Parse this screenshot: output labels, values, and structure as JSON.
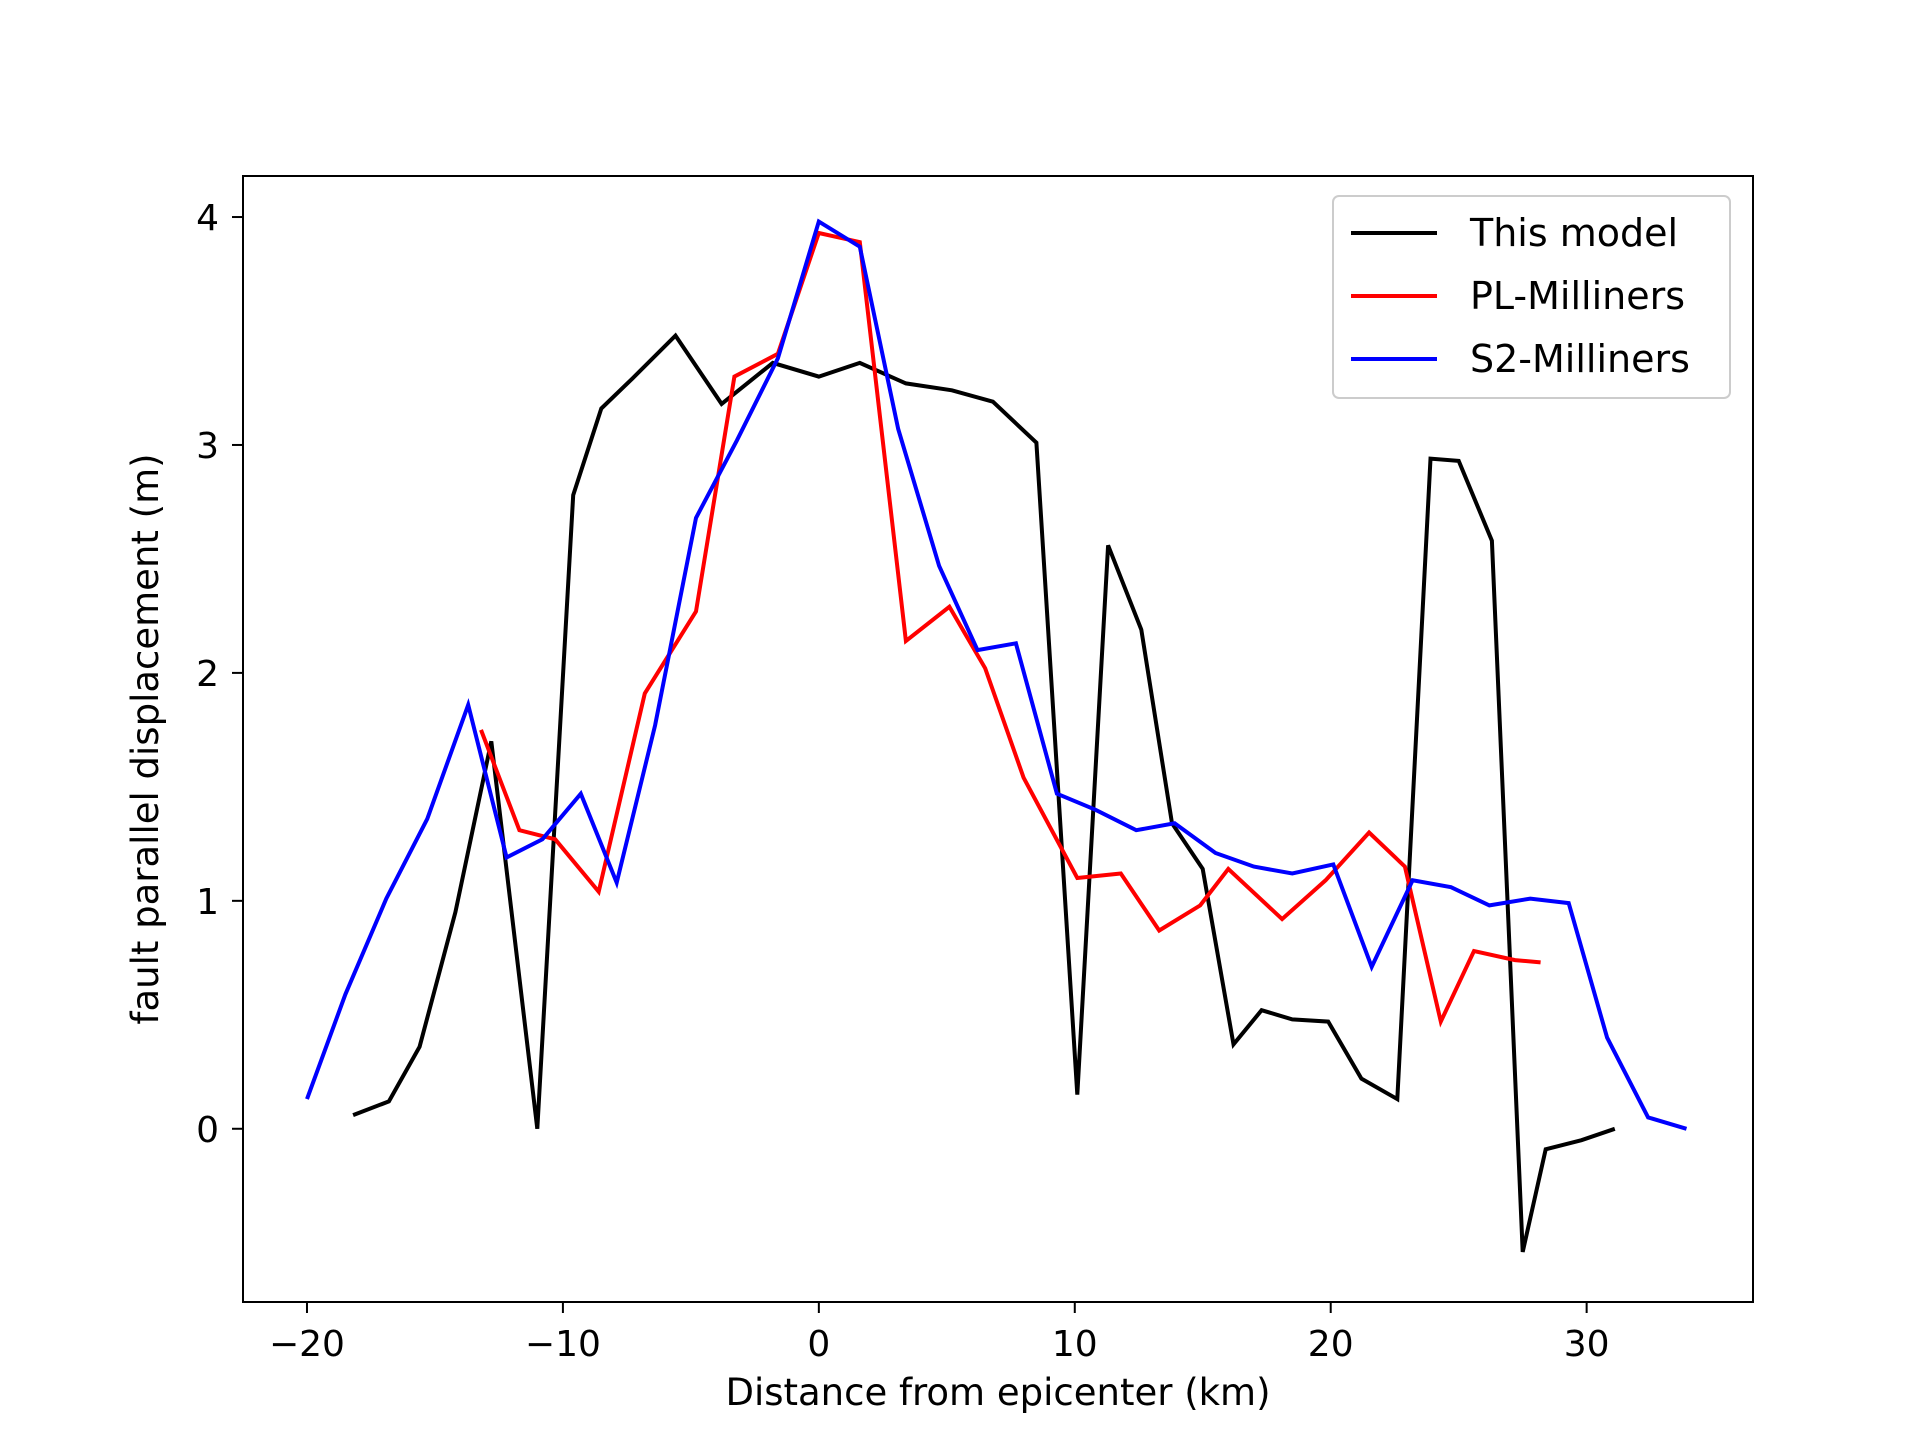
{
  "chart_data": {
    "type": "line",
    "title": "",
    "xlabel": "Distance from epicenter (km)",
    "ylabel": "fault parallel displacement (m)",
    "xlim": [
      -22.5,
      36.5
    ],
    "ylim": [
      -0.76,
      4.18
    ],
    "xticks": [
      -20,
      -10,
      0,
      10,
      20,
      30
    ],
    "xtick_labels": [
      "−20",
      "−10",
      "0",
      "10",
      "20",
      "30"
    ],
    "yticks": [
      0,
      1,
      2,
      3,
      4
    ],
    "ytick_labels": [
      "0",
      "1",
      "2",
      "3",
      "4"
    ],
    "grid": false,
    "legend_position": "top-right",
    "series": [
      {
        "name": "This model",
        "color": "#000000",
        "x": [
          -18.2,
          -16.8,
          -15.6,
          -14.2,
          -12.8,
          -11.0,
          -9.6,
          -8.5,
          -7.3,
          -5.6,
          -3.8,
          -1.8,
          0.0,
          1.6,
          3.4,
          5.2,
          6.8,
          8.5,
          10.1,
          11.3,
          12.6,
          13.8,
          15.0,
          16.2,
          17.3,
          18.5,
          19.9,
          21.2,
          22.6,
          23.9,
          25.0,
          26.3,
          27.5,
          28.4,
          29.8,
          31.1
        ],
        "y": [
          0.06,
          0.12,
          0.36,
          0.95,
          1.7,
          0.0,
          2.78,
          3.16,
          3.29,
          3.48,
          3.18,
          3.36,
          3.3,
          3.36,
          3.27,
          3.24,
          3.19,
          3.01,
          0.15,
          2.56,
          2.19,
          1.34,
          1.14,
          0.37,
          0.52,
          0.48,
          0.47,
          0.22,
          0.13,
          2.94,
          2.93,
          2.58,
          -0.54,
          -0.09,
          -0.05,
          0.0
        ]
      },
      {
        "name": "PL-Milliners",
        "color": "#ff0000",
        "x": [
          -13.2,
          -11.7,
          -10.3,
          -8.6,
          -6.8,
          -4.8,
          -3.3,
          -1.6,
          0.0,
          1.6,
          3.4,
          5.1,
          6.5,
          8.0,
          10.1,
          11.8,
          13.3,
          14.9,
          16.0,
          18.1,
          19.8,
          21.5,
          22.9,
          24.3,
          25.6,
          27.2,
          28.2
        ],
        "y": [
          1.75,
          1.31,
          1.27,
          1.04,
          1.91,
          2.27,
          3.3,
          3.4,
          3.93,
          3.89,
          2.14,
          2.29,
          2.02,
          1.54,
          1.1,
          1.12,
          0.87,
          0.98,
          1.14,
          0.92,
          1.09,
          1.3,
          1.15,
          0.47,
          0.78,
          0.74,
          0.73
        ]
      },
      {
        "name": "S2-Milliners",
        "color": "#0000ff",
        "x": [
          -20.0,
          -18.5,
          -16.9,
          -15.3,
          -13.7,
          -12.2,
          -10.8,
          -9.3,
          -7.9,
          -6.4,
          -4.8,
          -3.2,
          -1.6,
          0.0,
          1.6,
          3.1,
          4.7,
          6.2,
          7.7,
          9.3,
          10.8,
          12.4,
          13.9,
          15.5,
          17.0,
          18.5,
          20.1,
          21.6,
          23.2,
          24.7,
          26.2,
          27.8,
          29.3,
          30.8,
          32.4,
          33.9
        ],
        "y": [
          0.13,
          0.59,
          1.01,
          1.36,
          1.86,
          1.19,
          1.27,
          1.47,
          1.08,
          1.77,
          2.68,
          3.02,
          3.38,
          3.98,
          3.87,
          3.07,
          2.47,
          2.1,
          2.13,
          1.47,
          1.4,
          1.31,
          1.34,
          1.21,
          1.15,
          1.12,
          1.16,
          0.71,
          1.09,
          1.06,
          0.98,
          1.01,
          0.99,
          0.4,
          0.05,
          0.0
        ]
      }
    ]
  }
}
